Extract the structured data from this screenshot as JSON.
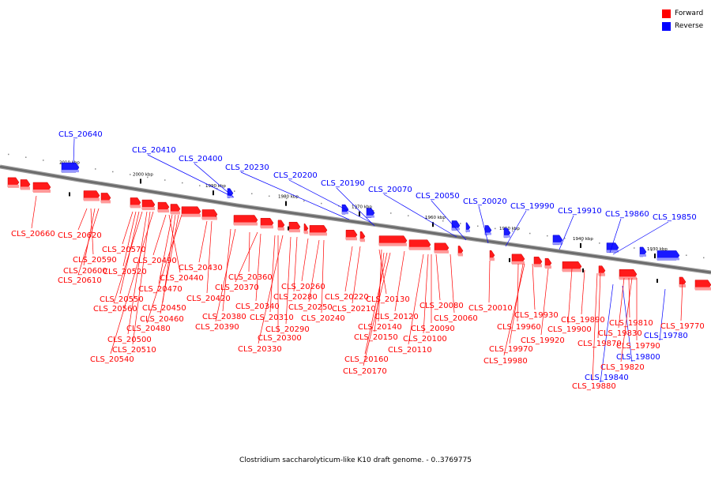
{
  "title": "Clostridium saccharolyticum-like K10 draft genome. - 0..3769775",
  "legend": [
    {
      "label": "Forward",
      "color": "#ff0000"
    },
    {
      "label": "Reverse",
      "color": "#0000ff"
    }
  ],
  "kbp_ticks": [
    "2010 kbp",
    "2000 kbp",
    "1990 kbp",
    "1980 kbp",
    "1970 kbp",
    "1960 kbp",
    "1950 kbp",
    "1940 kbp",
    "1930 kbp"
  ],
  "reverse_labels": [
    "CLS_20640",
    "CLS_20410",
    "CLS_20400",
    "CLS_20230",
    "CLS_20200",
    "CLS_20190",
    "CLS_20070",
    "CLS_20050",
    "CLS_20020",
    "CLS_19990",
    "CLS_19910",
    "CLS_19860",
    "CLS_19850",
    "CLS_19780",
    "CLS_19800",
    "CLS_19840"
  ],
  "forward_labels": [
    "CLS_20660",
    "CLS_20620",
    "CLS_20590",
    "CLS_20600",
    "CLS_20610",
    "CLS_20570",
    "CLS_20520",
    "CLS_20550",
    "CLS_20560",
    "CLS_20500",
    "CLS_20510",
    "CLS_20540",
    "CLS_20490",
    "CLS_20440",
    "CLS_20470",
    "CLS_20450",
    "CLS_20460",
    "CLS_20480",
    "CLS_20430",
    "CLS_20420",
    "CLS_20380",
    "CLS_20390",
    "CLS_20360",
    "CLS_20370",
    "CLS_20340",
    "CLS_20310",
    "CLS_20300",
    "CLS_20330",
    "CLS_20290",
    "CLS_20280",
    "CLS_20260",
    "CLS_20250",
    "CLS_20240",
    "CLS_20220",
    "CLS_20210",
    "CLS_20130",
    "CLS_20140",
    "CLS_20120",
    "CLS_20150",
    "CLS_20160",
    "CLS_20170",
    "CLS_20080",
    "CLS_20060",
    "CLS_20090",
    "CLS_20100",
    "CLS_20110",
    "CLS_20010",
    "CLS_19930",
    "CLS_19960",
    "CLS_19970",
    "CLS_19980",
    "CLS_19900",
    "CLS_19920",
    "CLS_19890",
    "CLS_19870",
    "CLS_19810",
    "CLS_19830",
    "CLS_19790",
    "CLS_19820",
    "CLS_19880",
    "CLS_19770"
  ]
}
